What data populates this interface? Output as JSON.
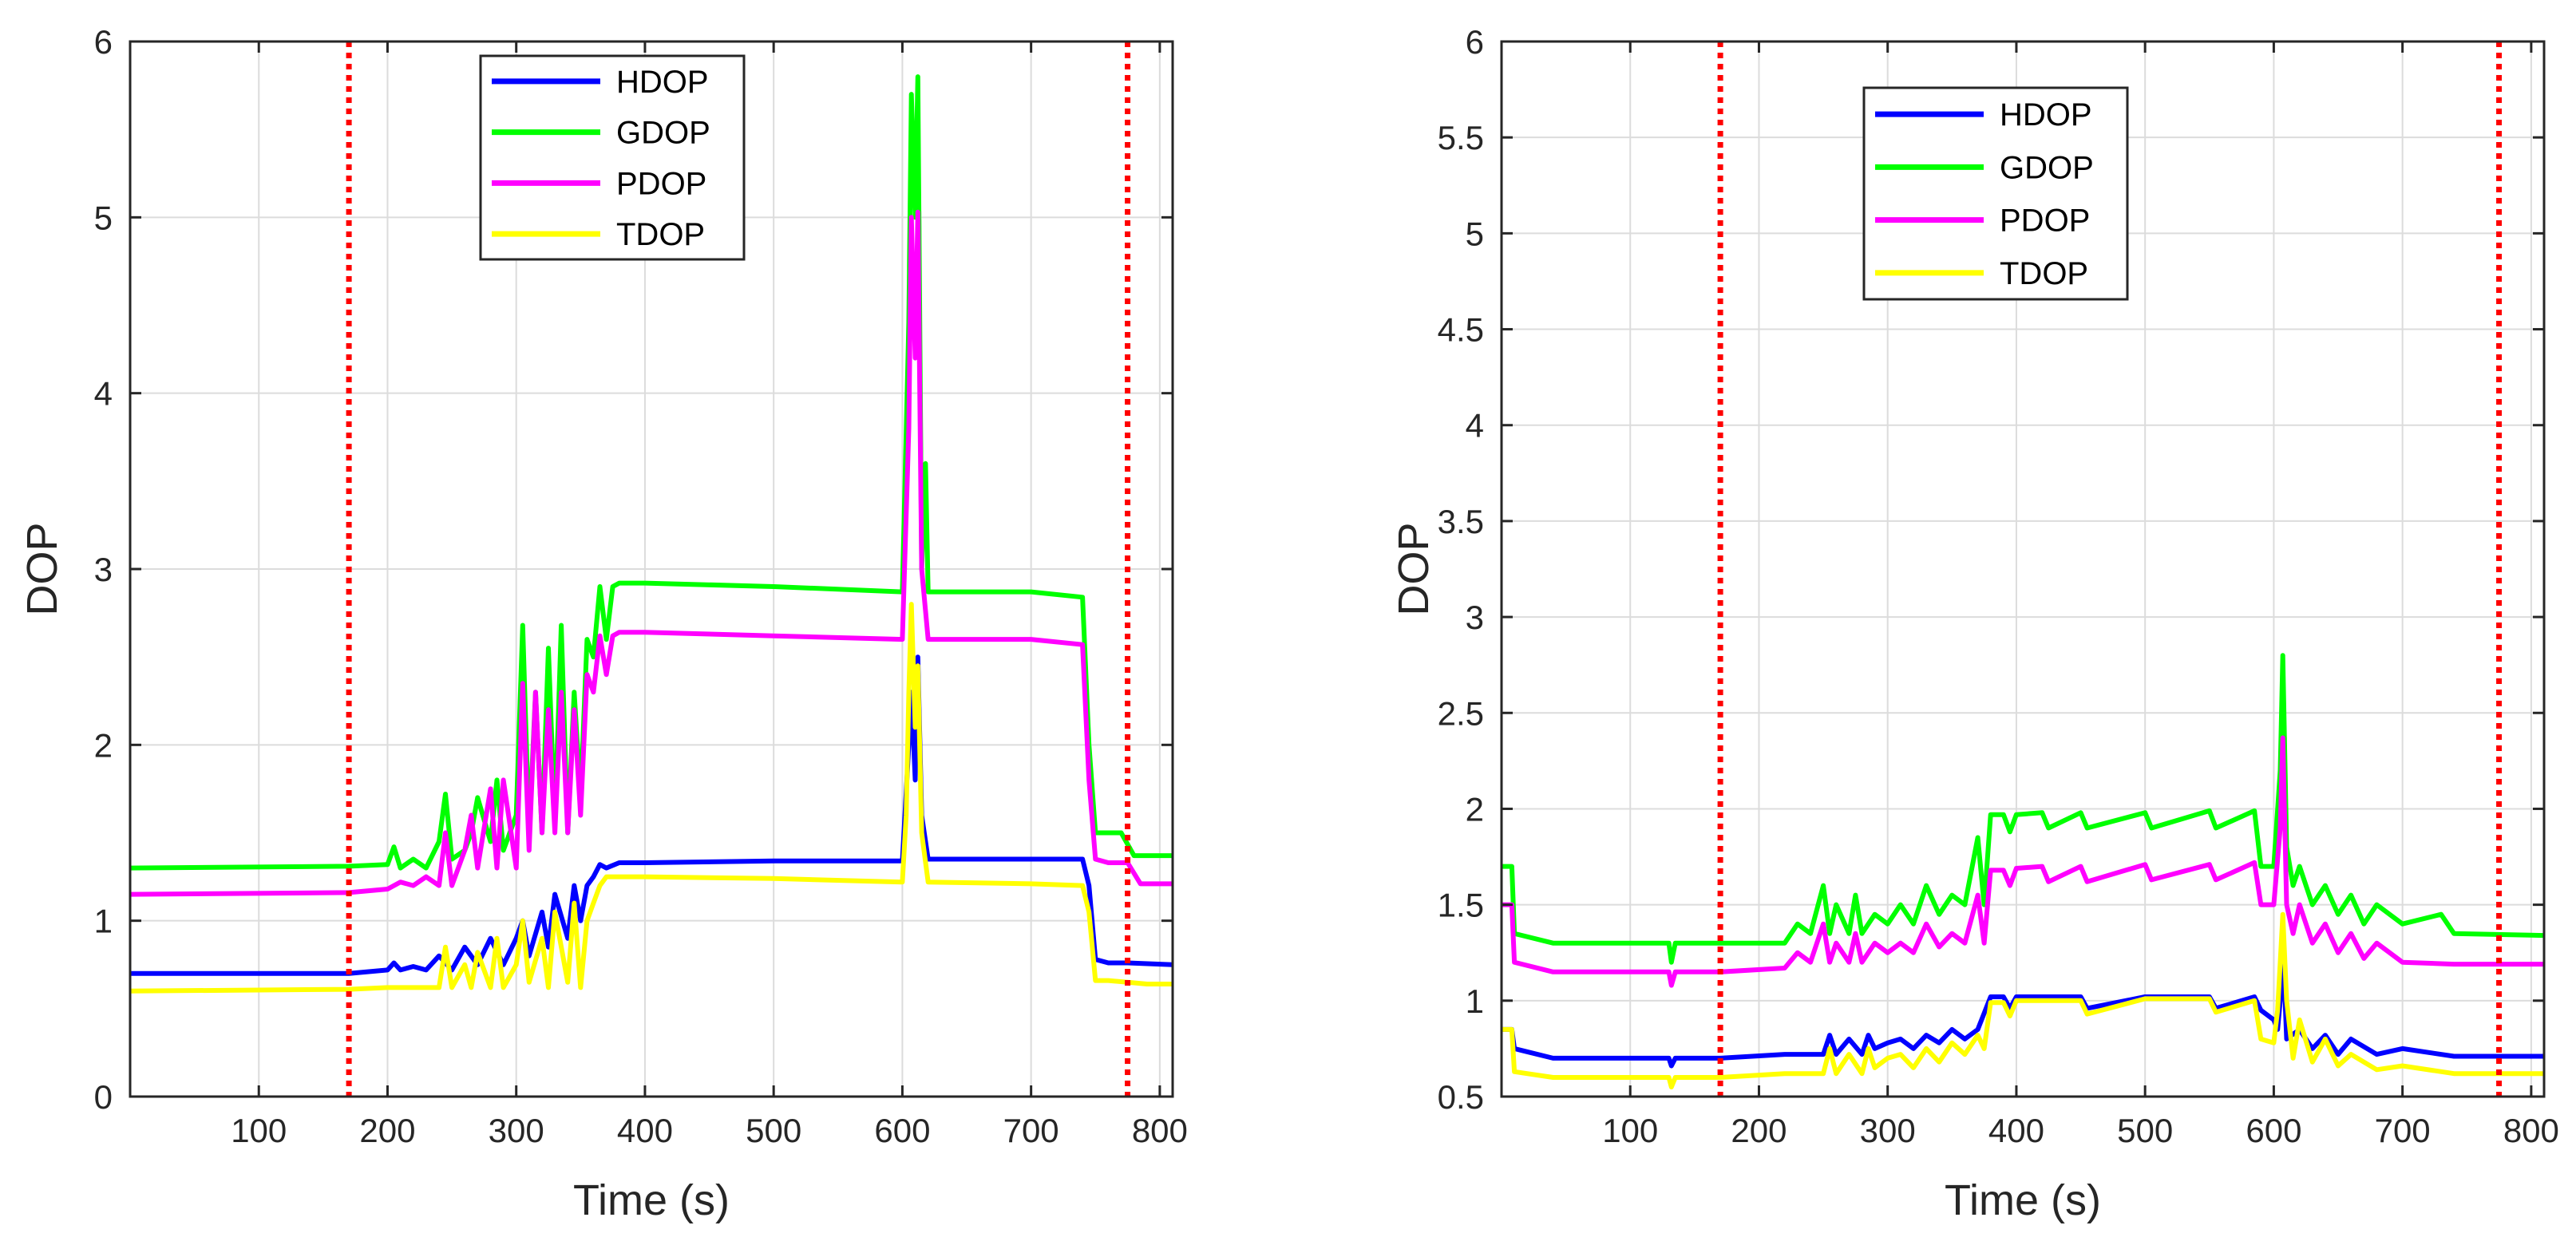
{
  "colors": {
    "HDOP": "#0000ff",
    "GDOP": "#00ff00",
    "PDOP": "#ff00ff",
    "TDOP": "#ffff00",
    "marker": "#ff0000",
    "grid": "#dcdcdc"
  },
  "chart_data": [
    {
      "type": "line",
      "title": "",
      "xlabel": "Time (s)",
      "ylabel": "DOP",
      "xlim": [
        0,
        810
      ],
      "ylim": [
        0,
        6
      ],
      "xticks": [
        100,
        200,
        300,
        400,
        500,
        600,
        700,
        800
      ],
      "yticks": [
        0,
        1,
        2,
        3,
        4,
        5,
        6
      ],
      "ytick_labels": [
        "0",
        "1",
        "2",
        "3",
        "4",
        "5",
        "6"
      ],
      "grid": true,
      "legend": [
        "HDOP",
        "GDOP",
        "PDOP",
        "TDOP"
      ],
      "legend_position": "top-center",
      "vlines": [
        170,
        775
      ],
      "series": [
        {
          "name": "GDOP",
          "x": [
            0,
            170,
            200,
            205,
            210,
            220,
            230,
            240,
            245,
            250,
            260,
            265,
            270,
            280,
            285,
            290,
            300,
            305,
            310,
            315,
            320,
            325,
            330,
            335,
            340,
            345,
            350,
            355,
            360,
            365,
            370,
            375,
            380,
            400,
            500,
            600,
            605,
            607,
            610,
            612,
            615,
            618,
            620,
            700,
            740,
            745,
            750,
            760,
            770,
            780,
            790,
            810
          ],
          "y": [
            1.3,
            1.31,
            1.32,
            1.42,
            1.3,
            1.35,
            1.3,
            1.45,
            1.72,
            1.35,
            1.4,
            1.5,
            1.7,
            1.45,
            1.8,
            1.4,
            1.6,
            2.68,
            1.5,
            2.3,
            1.5,
            2.55,
            1.55,
            2.68,
            1.5,
            2.3,
            1.7,
            2.6,
            2.5,
            2.9,
            2.6,
            2.9,
            2.92,
            2.92,
            2.9,
            2.87,
            4.4,
            5.7,
            5.0,
            5.8,
            3.0,
            3.6,
            2.87,
            2.87,
            2.84,
            2.0,
            1.5,
            1.5,
            1.5,
            1.37,
            1.37,
            1.37
          ]
        },
        {
          "name": "PDOP",
          "x": [
            0,
            170,
            200,
            210,
            220,
            230,
            240,
            245,
            250,
            260,
            265,
            270,
            280,
            285,
            290,
            300,
            305,
            310,
            315,
            320,
            325,
            330,
            335,
            340,
            345,
            350,
            355,
            360,
            365,
            370,
            375,
            380,
            400,
            500,
            600,
            605,
            607,
            610,
            612,
            615,
            620,
            700,
            740,
            745,
            750,
            760,
            775,
            785,
            810
          ],
          "y": [
            1.15,
            1.16,
            1.18,
            1.22,
            1.2,
            1.25,
            1.2,
            1.5,
            1.2,
            1.4,
            1.6,
            1.3,
            1.75,
            1.3,
            1.8,
            1.3,
            2.35,
            1.4,
            2.3,
            1.5,
            2.2,
            1.5,
            2.3,
            1.5,
            2.2,
            1.6,
            2.4,
            2.3,
            2.62,
            2.4,
            2.62,
            2.64,
            2.64,
            2.62,
            2.6,
            3.8,
            5.0,
            4.2,
            5.03,
            3.0,
            2.6,
            2.6,
            2.57,
            1.8,
            1.35,
            1.33,
            1.33,
            1.21,
            1.21
          ]
        },
        {
          "name": "HDOP",
          "x": [
            0,
            170,
            200,
            205,
            210,
            220,
            230,
            240,
            250,
            260,
            270,
            280,
            290,
            300,
            305,
            310,
            320,
            325,
            330,
            340,
            345,
            350,
            355,
            360,
            365,
            370,
            380,
            400,
            500,
            600,
            605,
            607,
            610,
            612,
            615,
            620,
            700,
            740,
            745,
            750,
            760,
            775,
            810
          ],
          "y": [
            0.7,
            0.7,
            0.72,
            0.76,
            0.72,
            0.74,
            0.72,
            0.8,
            0.72,
            0.85,
            0.75,
            0.9,
            0.75,
            0.9,
            1.0,
            0.8,
            1.05,
            0.85,
            1.15,
            0.9,
            1.2,
            1.0,
            1.2,
            1.25,
            1.32,
            1.3,
            1.33,
            1.33,
            1.34,
            1.34,
            2.0,
            2.3,
            1.8,
            2.5,
            1.6,
            1.35,
            1.35,
            1.35,
            1.2,
            0.78,
            0.76,
            0.76,
            0.75
          ]
        },
        {
          "name": "TDOP",
          "x": [
            0,
            170,
            200,
            240,
            245,
            250,
            260,
            265,
            270,
            280,
            285,
            290,
            300,
            305,
            310,
            320,
            325,
            330,
            340,
            345,
            350,
            355,
            360,
            365,
            370,
            380,
            400,
            500,
            600,
            603,
            605,
            607,
            610,
            612,
            615,
            620,
            700,
            740,
            745,
            750,
            760,
            775,
            790,
            810
          ],
          "y": [
            0.6,
            0.61,
            0.62,
            0.62,
            0.85,
            0.62,
            0.75,
            0.62,
            0.82,
            0.62,
            0.9,
            0.62,
            0.75,
            1.0,
            0.65,
            0.9,
            0.62,
            1.05,
            0.65,
            1.1,
            0.62,
            1.0,
            1.1,
            1.2,
            1.25,
            1.25,
            1.25,
            1.24,
            1.22,
            1.6,
            2.3,
            2.8,
            2.1,
            2.45,
            1.5,
            1.22,
            1.21,
            1.2,
            1.05,
            0.66,
            0.66,
            0.65,
            0.64,
            0.64
          ]
        }
      ]
    },
    {
      "type": "line",
      "title": "",
      "xlabel": "Time (s)",
      "ylabel": "DOP",
      "xlim": [
        0,
        810
      ],
      "ylim": [
        0.5,
        6
      ],
      "xticks": [
        100,
        200,
        300,
        400,
        500,
        600,
        700,
        800
      ],
      "yticks": [
        0.5,
        1,
        1.5,
        2,
        2.5,
        3,
        3.5,
        4,
        4.5,
        5,
        5.5,
        6
      ],
      "ytick_labels": [
        "0.5",
        "1",
        "1.5",
        "2",
        "2.5",
        "3",
        "3.5",
        "4",
        "4.5",
        "5",
        "5.5",
        "6"
      ],
      "grid": true,
      "legend": [
        "HDOP",
        "GDOP",
        "PDOP",
        "TDOP"
      ],
      "legend_position": "top-center",
      "vlines": [
        170,
        775
      ],
      "series": [
        {
          "name": "GDOP",
          "x": [
            0,
            8,
            10,
            40,
            130,
            132,
            135,
            170,
            220,
            230,
            240,
            250,
            255,
            260,
            270,
            275,
            280,
            290,
            300,
            310,
            320,
            330,
            340,
            350,
            360,
            370,
            375,
            380,
            390,
            395,
            400,
            420,
            425,
            450,
            455,
            500,
            505,
            550,
            555,
            585,
            590,
            600,
            605,
            607,
            610,
            615,
            620,
            630,
            640,
            650,
            660,
            670,
            680,
            700,
            730,
            740,
            810
          ],
          "y": [
            1.7,
            1.7,
            1.35,
            1.3,
            1.3,
            1.2,
            1.3,
            1.3,
            1.3,
            1.4,
            1.35,
            1.6,
            1.35,
            1.5,
            1.35,
            1.55,
            1.35,
            1.45,
            1.4,
            1.5,
            1.4,
            1.6,
            1.45,
            1.55,
            1.5,
            1.85,
            1.5,
            1.97,
            1.97,
            1.88,
            1.97,
            1.98,
            1.9,
            1.98,
            1.9,
            1.98,
            1.9,
            1.99,
            1.9,
            1.99,
            1.7,
            1.7,
            2.2,
            2.8,
            1.8,
            1.6,
            1.7,
            1.5,
            1.6,
            1.45,
            1.55,
            1.4,
            1.5,
            1.4,
            1.45,
            1.35,
            1.34
          ]
        },
        {
          "name": "PDOP",
          "x": [
            0,
            8,
            10,
            40,
            130,
            132,
            135,
            170,
            220,
            230,
            240,
            250,
            255,
            260,
            270,
            275,
            280,
            290,
            300,
            310,
            320,
            330,
            340,
            350,
            360,
            370,
            375,
            380,
            390,
            395,
            400,
            420,
            425,
            450,
            455,
            500,
            505,
            550,
            555,
            585,
            590,
            600,
            605,
            607,
            610,
            615,
            620,
            630,
            640,
            650,
            660,
            670,
            680,
            700,
            740,
            810
          ],
          "y": [
            1.5,
            1.5,
            1.2,
            1.15,
            1.15,
            1.08,
            1.15,
            1.15,
            1.17,
            1.25,
            1.2,
            1.4,
            1.2,
            1.3,
            1.2,
            1.35,
            1.2,
            1.3,
            1.25,
            1.3,
            1.25,
            1.4,
            1.28,
            1.35,
            1.3,
            1.55,
            1.3,
            1.68,
            1.68,
            1.6,
            1.69,
            1.7,
            1.62,
            1.7,
            1.62,
            1.71,
            1.63,
            1.71,
            1.63,
            1.72,
            1.5,
            1.5,
            1.9,
            2.37,
            1.5,
            1.35,
            1.5,
            1.3,
            1.4,
            1.25,
            1.35,
            1.22,
            1.3,
            1.2,
            1.19,
            1.19
          ]
        },
        {
          "name": "HDOP",
          "x": [
            0,
            8,
            10,
            40,
            130,
            132,
            135,
            170,
            220,
            250,
            255,
            260,
            270,
            280,
            285,
            290,
            300,
            310,
            320,
            330,
            340,
            350,
            360,
            370,
            380,
            390,
            395,
            400,
            450,
            455,
            500,
            550,
            555,
            585,
            590,
            600,
            603,
            605,
            607,
            610,
            620,
            630,
            640,
            650,
            660,
            680,
            700,
            740,
            810
          ],
          "y": [
            0.85,
            0.85,
            0.75,
            0.7,
            0.7,
            0.66,
            0.7,
            0.7,
            0.72,
            0.72,
            0.82,
            0.72,
            0.8,
            0.72,
            0.82,
            0.75,
            0.78,
            0.8,
            0.75,
            0.82,
            0.78,
            0.85,
            0.8,
            0.85,
            1.02,
            1.02,
            0.96,
            1.02,
            1.02,
            0.96,
            1.02,
            1.02,
            0.96,
            1.02,
            0.95,
            0.9,
            0.85,
            1.0,
            1.3,
            0.8,
            0.85,
            0.75,
            0.82,
            0.72,
            0.8,
            0.72,
            0.75,
            0.71,
            0.71
          ]
        },
        {
          "name": "TDOP",
          "x": [
            0,
            8,
            10,
            40,
            130,
            132,
            135,
            170,
            220,
            250,
            255,
            260,
            270,
            280,
            285,
            290,
            300,
            310,
            320,
            330,
            340,
            350,
            360,
            370,
            375,
            380,
            390,
            395,
            400,
            450,
            455,
            500,
            550,
            555,
            585,
            590,
            600,
            603,
            605,
            607,
            610,
            615,
            620,
            630,
            640,
            650,
            660,
            680,
            700,
            740,
            810
          ],
          "y": [
            0.85,
            0.85,
            0.63,
            0.6,
            0.6,
            0.55,
            0.6,
            0.6,
            0.62,
            0.62,
            0.75,
            0.62,
            0.72,
            0.62,
            0.75,
            0.65,
            0.7,
            0.72,
            0.65,
            0.75,
            0.68,
            0.78,
            0.72,
            0.82,
            0.75,
            0.99,
            0.99,
            0.92,
            1.0,
            1.0,
            0.93,
            1.01,
            1.01,
            0.94,
            1.0,
            0.8,
            0.78,
            0.95,
            1.2,
            1.45,
            1.0,
            0.7,
            0.9,
            0.68,
            0.8,
            0.66,
            0.72,
            0.64,
            0.66,
            0.62,
            0.62
          ]
        }
      ]
    }
  ]
}
